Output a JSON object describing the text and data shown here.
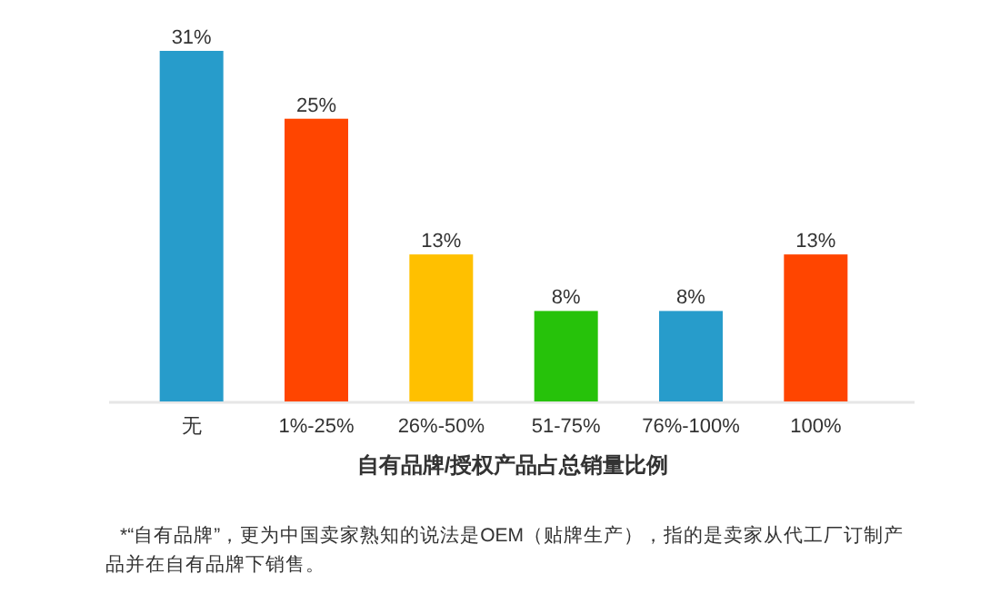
{
  "chart_data": {
    "type": "bar",
    "xlabel": "自有品牌/授权产品占总销量比例",
    "categories": [
      "无",
      "1%-25%",
      "26%-50%",
      "51-75%",
      "76%-100%",
      "100%"
    ],
    "values": [
      31,
      25,
      13,
      8,
      8,
      13
    ],
    "value_labels": [
      "31%",
      "25%",
      "13%",
      "8%",
      "8%",
      "13%"
    ],
    "colors": [
      "#279ccb",
      "#ff4500",
      "#ffc000",
      "#26c20a",
      "#279ccb",
      "#ff4500"
    ],
    "annotations": [
      "*“自有品牌”，更为中国卖家熟知的说法是OEM（贴牌生产），指的是卖家从代工厂订制产品并在自有品牌下销售。"
    ]
  }
}
